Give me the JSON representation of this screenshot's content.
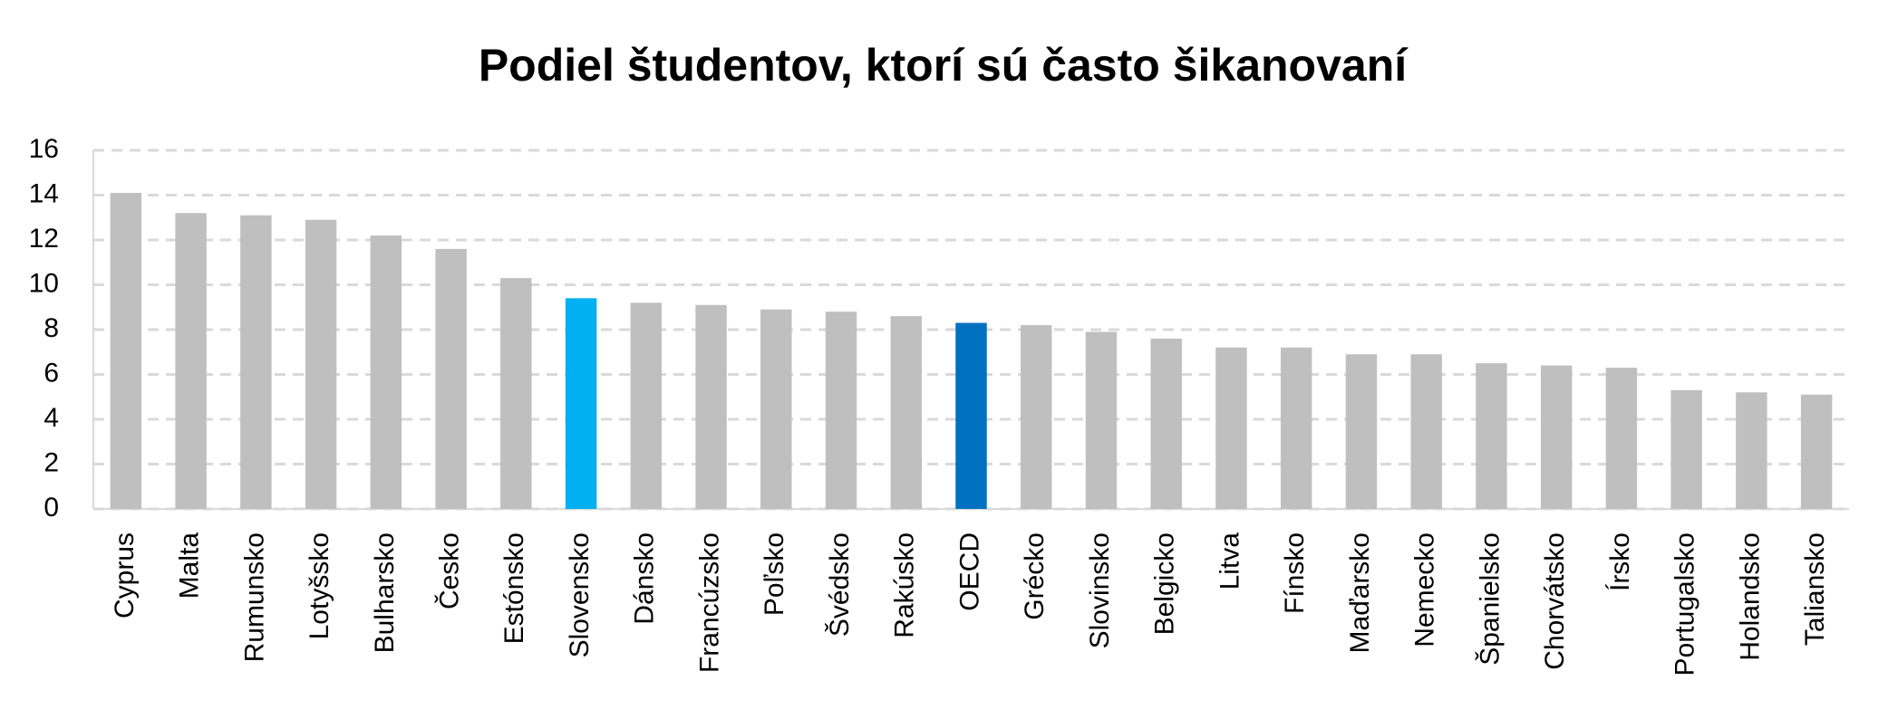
{
  "chart_data": {
    "type": "bar",
    "title": "Podiel študentov, ktorí sú často šikanovaní",
    "categories": [
      "Cyprus",
      "Malta",
      "Rumunsko",
      "Lotyšsko",
      "Bulharsko",
      "Česko",
      "Estónsko",
      "Slovensko",
      "Dánsko",
      "Francúzsko",
      "Poľsko",
      "Švédsko",
      "Rakúsko",
      "OECD",
      "Grécko",
      "Slovinsko",
      "Belgicko",
      "Litva",
      "Fínsko",
      "Maďarsko",
      "Nemecko",
      "Španielsko",
      "Chorvátsko",
      "Írsko",
      "Portugalsko",
      "Holandsko",
      "Taliansko"
    ],
    "values": [
      14.1,
      13.2,
      13.1,
      12.9,
      12.2,
      11.6,
      10.3,
      9.4,
      9.2,
      9.1,
      8.9,
      8.8,
      8.6,
      8.3,
      8.2,
      7.9,
      7.6,
      7.2,
      7.2,
      6.9,
      6.9,
      6.5,
      6.4,
      6.3,
      5.3,
      5.2,
      5.1
    ],
    "colors": [
      "#bfbfbf",
      "#bfbfbf",
      "#bfbfbf",
      "#bfbfbf",
      "#bfbfbf",
      "#bfbfbf",
      "#bfbfbf",
      "#00b0f0",
      "#bfbfbf",
      "#bfbfbf",
      "#bfbfbf",
      "#bfbfbf",
      "#bfbfbf",
      "#0070c0",
      "#bfbfbf",
      "#bfbfbf",
      "#bfbfbf",
      "#bfbfbf",
      "#bfbfbf",
      "#bfbfbf",
      "#bfbfbf",
      "#bfbfbf",
      "#bfbfbf",
      "#bfbfbf",
      "#bfbfbf",
      "#bfbfbf",
      "#bfbfbf"
    ],
    "ylim": [
      0,
      16
    ],
    "yticks": [
      0,
      2,
      4,
      6,
      8,
      10,
      12,
      14,
      16
    ],
    "grid": true
  }
}
